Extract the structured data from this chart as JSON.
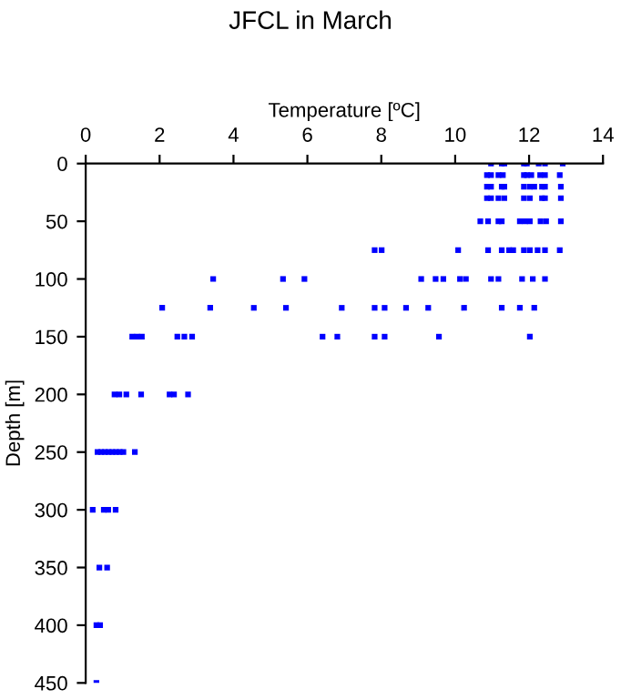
{
  "chart_data": {
    "type": "scatter",
    "title": "JFCL in March",
    "xlabel": "Temperature [ºC]",
    "ylabel": "Depth [m]",
    "xlim": [
      0,
      14
    ],
    "xticks": [
      0,
      2,
      4,
      6,
      8,
      10,
      12,
      14
    ],
    "ylim": [
      450,
      0
    ],
    "yticks": [
      0,
      50,
      100,
      150,
      200,
      250,
      300,
      350,
      400,
      450
    ],
    "marker": "square",
    "grid": false,
    "series": [
      {
        "color": "#0000ff",
        "x": [
          10.97,
          11.26,
          11.33,
          11.86,
          11.94,
          12.26,
          12.43,
          12.91,
          10.86,
          10.97,
          11.17,
          11.29,
          11.86,
          11.94,
          12.06,
          12.3,
          12.43,
          12.83,
          10.86,
          10.97,
          11.26,
          11.33,
          11.86,
          12.02,
          12.14,
          12.35,
          12.43,
          12.86,
          10.86,
          10.97,
          11.17,
          11.33,
          11.86,
          12.02,
          12.35,
          12.43,
          12.86,
          10.68,
          10.89,
          11.17,
          11.26,
          11.75,
          11.89,
          12.02,
          12.31,
          12.46,
          12.86,
          7.82,
          8.01,
          10.08,
          10.89,
          11.26,
          11.46,
          11.57,
          11.86,
          12.02,
          12.23,
          12.43,
          12.83,
          3.45,
          5.34,
          5.92,
          9.08,
          9.47,
          9.68,
          10.13,
          10.29,
          10.97,
          11.17,
          11.81,
          12.1,
          12.43,
          2.07,
          3.37,
          4.55,
          5.42,
          6.93,
          7.82,
          8.09,
          8.67,
          9.27,
          10.24,
          11.26,
          11.75,
          12.14,
          1.26,
          1.39,
          1.52,
          2.48,
          2.67,
          2.88,
          6.41,
          6.81,
          7.82,
          8.09,
          9.56,
          12.02,
          0.78,
          0.91,
          1.1,
          1.5,
          2.27,
          2.39,
          2.77,
          0.32,
          0.42,
          0.52,
          0.62,
          0.72,
          0.82,
          0.92,
          1.02,
          1.33,
          0.19,
          0.49,
          0.61,
          0.81,
          0.37,
          0.58,
          0.29,
          0.39,
          0.29
        ],
        "values": [
          0,
          0,
          0,
          0,
          0,
          0,
          0,
          0,
          10,
          10,
          10,
          10,
          10,
          10,
          10,
          10,
          10,
          10,
          20,
          20,
          20,
          20,
          20,
          20,
          20,
          20,
          20,
          20,
          30,
          30,
          30,
          30,
          30,
          30,
          30,
          30,
          30,
          50,
          50,
          50,
          50,
          50,
          50,
          50,
          50,
          50,
          50,
          75,
          75,
          75,
          75,
          75,
          75,
          75,
          75,
          75,
          75,
          75,
          75,
          100,
          100,
          100,
          100,
          100,
          100,
          100,
          100,
          100,
          100,
          100,
          100,
          100,
          125,
          125,
          125,
          125,
          125,
          125,
          125,
          125,
          125,
          125,
          125,
          125,
          125,
          150,
          150,
          150,
          150,
          150,
          150,
          150,
          150,
          150,
          150,
          150,
          150,
          200,
          200,
          200,
          200,
          200,
          200,
          200,
          250,
          250,
          250,
          250,
          250,
          250,
          250,
          250,
          250,
          300,
          300,
          300,
          300,
          350,
          350,
          400,
          400,
          450
        ]
      }
    ]
  }
}
